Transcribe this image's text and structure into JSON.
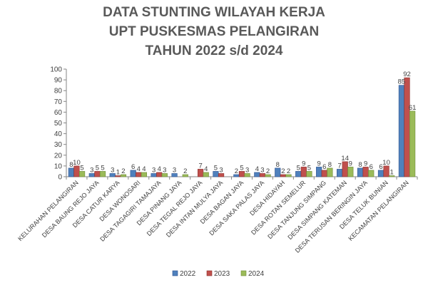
{
  "chart_data": {
    "type": "bar",
    "title_lines": [
      "DATA STUNTING WILAYAH KERJA",
      "UPT PUSKESMAS PELANGIRAN",
      "TAHUN 2022 s/d 2024"
    ],
    "categories": [
      "KELURAHAN PELANGIRAN",
      "DESA BAUNG REJO JAYA",
      "DESA CATUR KARYA",
      "DESA WONOSARI",
      "DESA TAGAGIRI TAMAJAYA",
      "DESA PINANG JAYA",
      "DESA TEGAL REJO JAYA",
      "DESA INTAN MULYA JAYA",
      "DESA BAGAN JAYA",
      "DESA SAKA PALAS JAYA",
      "DESA HIDAYAH",
      "DESA ROTAN SEMELUR",
      "DESA TANJUNG SIMPANG",
      "DESA SIMPANG KATEMAN",
      "DESA TERUSAN BERINGIN JAYA",
      "DESA TELUK BUNIAN",
      "KECAMATAN PELANGIRAN"
    ],
    "series": [
      {
        "name": "2022",
        "color": "#4F81BD",
        "stroke": "#2F528F",
        "values": [
          8,
          3,
          3,
          6,
          3,
          3,
          null,
          5,
          2,
          4,
          8,
          5,
          9,
          7,
          8,
          6,
          85
        ]
      },
      {
        "name": "2023",
        "color": "#C0504D",
        "stroke": "#8B2E2C",
        "values": [
          10,
          5,
          1,
          4,
          4,
          null,
          7,
          3,
          5,
          3,
          2,
          9,
          6,
          14,
          9,
          10,
          92
        ]
      },
      {
        "name": "2024",
        "color": "#9BBB59",
        "stroke": "#6E8A3A",
        "values": [
          5,
          5,
          2,
          4,
          3,
          2,
          4,
          null,
          3,
          2,
          2,
          5,
          8,
          9,
          6,
          1,
          61
        ]
      }
    ],
    "ylim": [
      0,
      100
    ],
    "yticks": [
      0,
      10,
      20,
      30,
      40,
      50,
      60,
      70,
      80,
      90,
      100
    ],
    "grid": false,
    "legend_position": "bottom"
  }
}
